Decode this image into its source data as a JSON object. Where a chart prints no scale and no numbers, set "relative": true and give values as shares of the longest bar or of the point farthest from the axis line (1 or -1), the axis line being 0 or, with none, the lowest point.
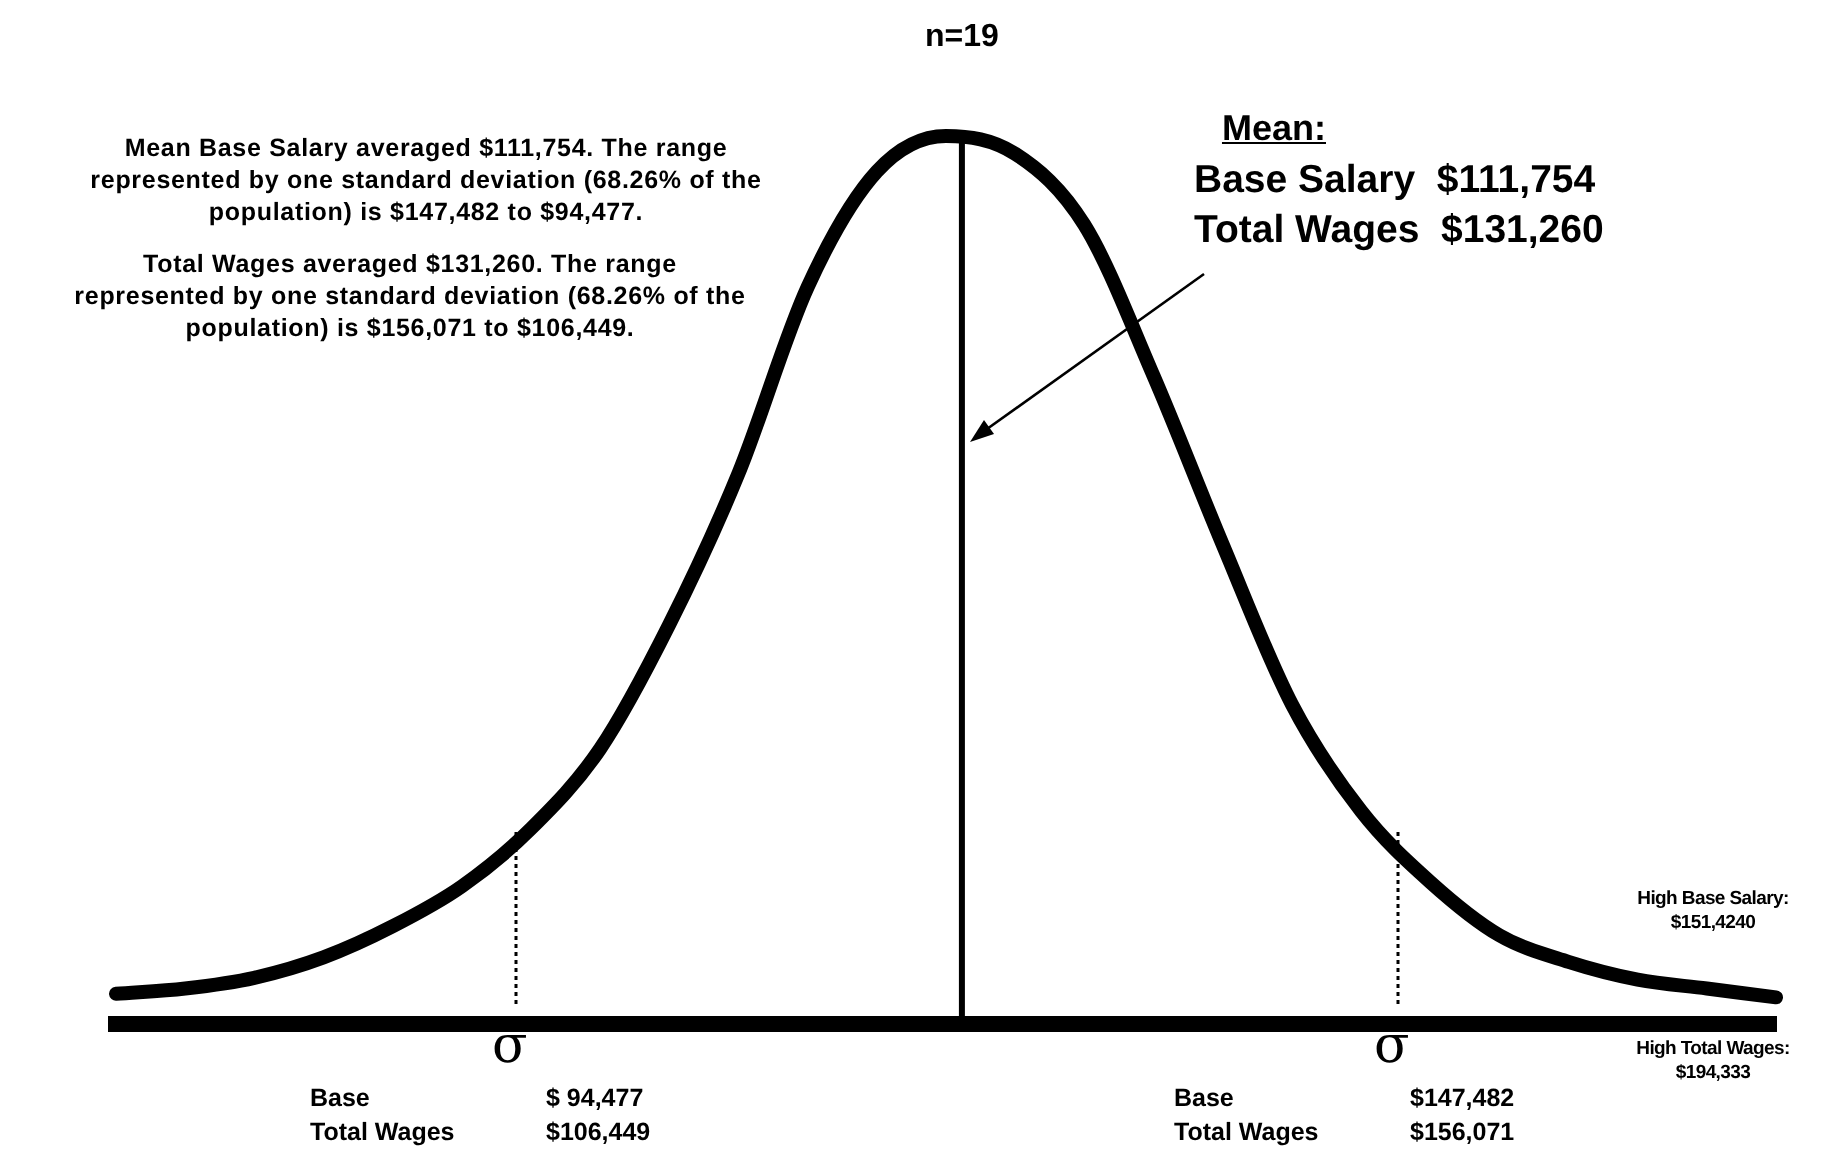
{
  "chart_data": {
    "type": "line",
    "title": "n=19",
    "relative": true,
    "color": "#000000",
    "marker": "none",
    "legend": false,
    "grid": false,
    "categories": [
      null,
      null,
      null,
      null,
      null,
      null,
      null,
      null,
      null,
      null,
      null,
      null,
      null,
      null,
      null,
      null,
      null,
      null,
      null,
      null,
      null,
      null,
      null,
      null,
      null
    ],
    "values": [
      0.034,
      0.04,
      0.052,
      0.075,
      0.11,
      0.155,
      0.22,
      0.31,
      0.45,
      0.62,
      0.83,
      0.96,
      1,
      0.98,
      0.9,
      0.73,
      0.54,
      0.36,
      0.24,
      0.16,
      0.1,
      0.07,
      0.05,
      0.04,
      0.03
    ],
    "annotations": [
      "Mean Base Salary averaged $111,754.  The range represented by one standard deviation (68.26% of the population) is $147,482 to $94,477.",
      "Total Wages averaged $131,260.  The range represented by one standard deviation (68.26% of the population) is $156,071 to $106,449.",
      "Mean:",
      "Base Salary  $111,754",
      "Total Wages  $131,260",
      "σ",
      "σ",
      "Base\t$ 94,477\nTotal Wages\t$106,449",
      "Base\t$147,482\nTotal Wages\t$156,071",
      "High Base Salary:\n$151,4240",
      "High Total Wages:\n$194,333"
    ]
  }
}
